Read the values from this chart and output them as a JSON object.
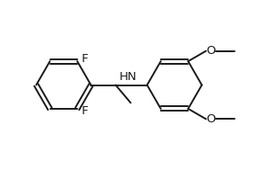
{
  "bg": "#ffffff",
  "lc": "#1a1a1a",
  "lw": 1.4,
  "fs": 9.5,
  "ring_r": 1.0,
  "xlim": [
    0.2,
    10.2
  ],
  "ylim": [
    0.5,
    6.5
  ]
}
